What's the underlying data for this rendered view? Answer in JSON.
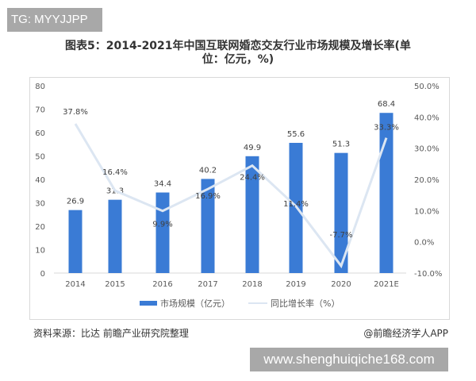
{
  "watermark_top": "TG: MYYJJPP",
  "watermark_bottom": "www.shenghuiqiche168.com",
  "title_line1": "图表5：2014-2021年中国互联网婚恋交友行业市场规模及增长率(单",
  "title_line2": "位：亿元，%)",
  "source": "资料来源：比达 前瞻产业研究院整理",
  "credit": "@前瞻经济学人APP",
  "colors": {
    "bar": "#3a7bd5",
    "line": "#dce6f2",
    "text": "#404040"
  },
  "chart_data": {
    "type": "bar",
    "title": "2014-2021年中国互联网婚恋交友行业市场规模及增长率(单位：亿元，%)",
    "categories": [
      "2014",
      "2015",
      "2016",
      "2017",
      "2018",
      "2019",
      "2020",
      "2021E"
    ],
    "series": [
      {
        "name": "市场规模（亿元）",
        "type": "bar",
        "axis": "left",
        "values": [
          26.9,
          31.3,
          34.4,
          40.2,
          49.9,
          55.6,
          51.3,
          68.4
        ]
      },
      {
        "name": "同比增长率（%）",
        "type": "line",
        "axis": "right",
        "values": [
          37.8,
          16.4,
          9.9,
          16.9,
          24.4,
          11.4,
          -7.7,
          33.3
        ]
      }
    ],
    "bar_labels": [
      "26.9",
      "31.3",
      "34.4",
      "40.2",
      "49.9",
      "55.6",
      "51.3",
      "68.4"
    ],
    "line_labels": [
      "37.8%",
      "16.4%",
      "9.9%",
      "16.9%",
      "24.4%",
      "11.4%",
      "-7.7%",
      "33.3%"
    ],
    "ylim_left": [
      0,
      80
    ],
    "yticks_left": [
      "0",
      "10",
      "20",
      "30",
      "40",
      "50",
      "60",
      "70",
      "80"
    ],
    "ylim_right": [
      -10,
      50
    ],
    "yticks_right": [
      "-10.0%",
      "0.0%",
      "10.0%",
      "20.0%",
      "30.0%",
      "40.0%",
      "50.0%"
    ],
    "legend": [
      "市场规模（亿元）",
      "同比增长率（%）"
    ],
    "legend_position": "bottom",
    "grid": false
  }
}
